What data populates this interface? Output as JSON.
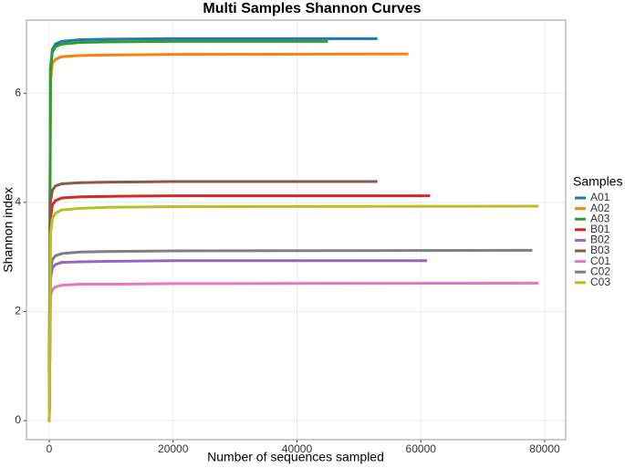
{
  "chart_data": {
    "type": "line",
    "title": "Multi Samples Shannon Curves",
    "x_label": "Number of sequences sampled",
    "y_label": "Shannon index",
    "legend_title": "Samples",
    "legend_position": "right",
    "grid": true,
    "xlim": [
      -3680,
      83390
    ],
    "xticks": [
      0,
      20000,
      40000,
      60000,
      80000
    ],
    "ylim": [
      -0.35,
      7.34
    ],
    "yticks": [
      0,
      2,
      4,
      6
    ],
    "series": [
      {
        "name": "A01",
        "color": "#1f78b4",
        "x": [
          0,
          200,
          500,
          1000,
          2000,
          5000,
          10000,
          20000,
          53000
        ],
        "values": [
          0,
          6.45,
          6.8,
          6.9,
          6.95,
          6.98,
          6.99,
          7.0,
          7.0
        ]
      },
      {
        "name": "A02",
        "color": "#ff7f0e",
        "x": [
          0,
          200,
          500,
          1000,
          2000,
          5000,
          10000,
          20000,
          58000
        ],
        "values": [
          0,
          6.2,
          6.55,
          6.62,
          6.67,
          6.69,
          6.7,
          6.71,
          6.72
        ]
      },
      {
        "name": "A03",
        "color": "#2ca02c",
        "x": [
          0,
          200,
          500,
          1000,
          2000,
          5000,
          10000,
          20000,
          45000
        ],
        "values": [
          0,
          6.45,
          6.75,
          6.85,
          6.9,
          6.93,
          6.94,
          6.95,
          6.95
        ]
      },
      {
        "name": "B01",
        "color": "#d62728",
        "x": [
          0,
          200,
          500,
          1000,
          2000,
          5000,
          10000,
          20000,
          61500
        ],
        "values": [
          0,
          3.7,
          3.95,
          4.03,
          4.08,
          4.1,
          4.11,
          4.12,
          4.12
        ]
      },
      {
        "name": "B02",
        "color": "#9467bd",
        "x": [
          0,
          200,
          500,
          1000,
          2000,
          5000,
          10000,
          20000,
          61000
        ],
        "values": [
          0,
          2.6,
          2.8,
          2.86,
          2.9,
          2.91,
          2.92,
          2.93,
          2.93
        ]
      },
      {
        "name": "B03",
        "color": "#8c564b",
        "x": [
          0,
          200,
          500,
          1000,
          2000,
          5000,
          10000,
          20000,
          53000
        ],
        "values": [
          0,
          4.0,
          4.22,
          4.3,
          4.34,
          4.36,
          4.37,
          4.38,
          4.38
        ]
      },
      {
        "name": "C01",
        "color": "#e377c2",
        "x": [
          0,
          200,
          500,
          1000,
          2000,
          5000,
          10000,
          20000,
          79000
        ],
        "values": [
          0,
          2.3,
          2.4,
          2.45,
          2.48,
          2.5,
          2.5,
          2.51,
          2.52
        ]
      },
      {
        "name": "C02",
        "color": "#7f7f7f",
        "x": [
          0,
          200,
          500,
          1000,
          2000,
          5000,
          10000,
          20000,
          78000
        ],
        "values": [
          0,
          2.75,
          2.95,
          3.02,
          3.06,
          3.09,
          3.1,
          3.11,
          3.12
        ]
      },
      {
        "name": "C03",
        "color": "#bcbd22",
        "x": [
          0,
          200,
          500,
          1000,
          2000,
          5000,
          10000,
          20000,
          79000
        ],
        "values": [
          0,
          3.4,
          3.7,
          3.8,
          3.86,
          3.89,
          3.91,
          3.92,
          3.93
        ]
      }
    ]
  }
}
